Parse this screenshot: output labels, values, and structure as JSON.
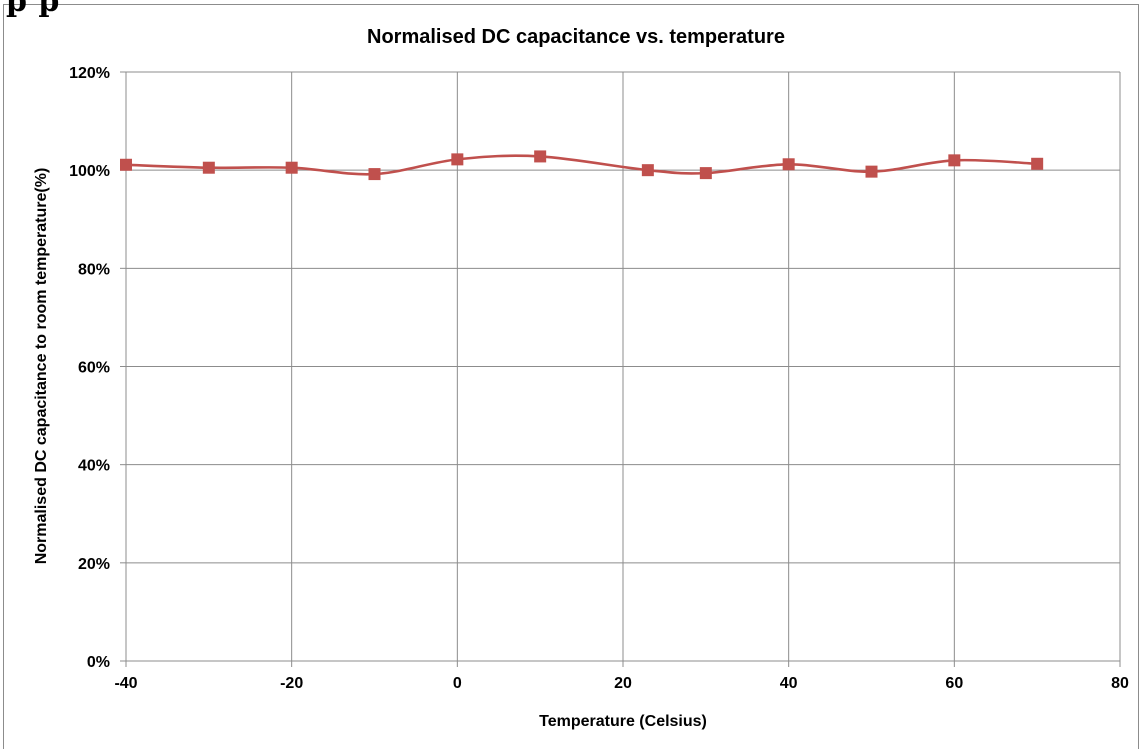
{
  "chart_data": {
    "type": "line",
    "title": "Normalised DC capacitance vs. temperature",
    "xlabel": "Temperature (Celsius)",
    "ylabel": "Normalised DC capacitance to room temperature(%)",
    "xlim": [
      -40,
      80
    ],
    "ylim": [
      0,
      1.2
    ],
    "x_ticks": [
      -40,
      -20,
      0,
      20,
      40,
      60,
      80
    ],
    "x_tick_labels": [
      "-40",
      "-20",
      "0",
      "20",
      "40",
      "60",
      "80"
    ],
    "y_ticks": [
      0,
      0.2,
      0.4,
      0.6,
      0.8,
      1.0,
      1.2
    ],
    "y_tick_labels": [
      "0%",
      "20%",
      "40%",
      "60%",
      "80%",
      "100%",
      "120%"
    ],
    "grid": true,
    "legend": "none",
    "smoothed": true,
    "marker": "square",
    "series": [
      {
        "color": "#c0504d",
        "x": [
          -40,
          -30,
          -20,
          -10,
          0,
          10,
          23,
          30,
          40,
          50,
          60,
          70
        ],
        "y": [
          1.011,
          1.005,
          1.005,
          0.992,
          1.022,
          1.028,
          1.0,
          0.994,
          1.012,
          0.997,
          1.02,
          1.013
        ]
      }
    ]
  },
  "cropped_heading": "p                                           p"
}
